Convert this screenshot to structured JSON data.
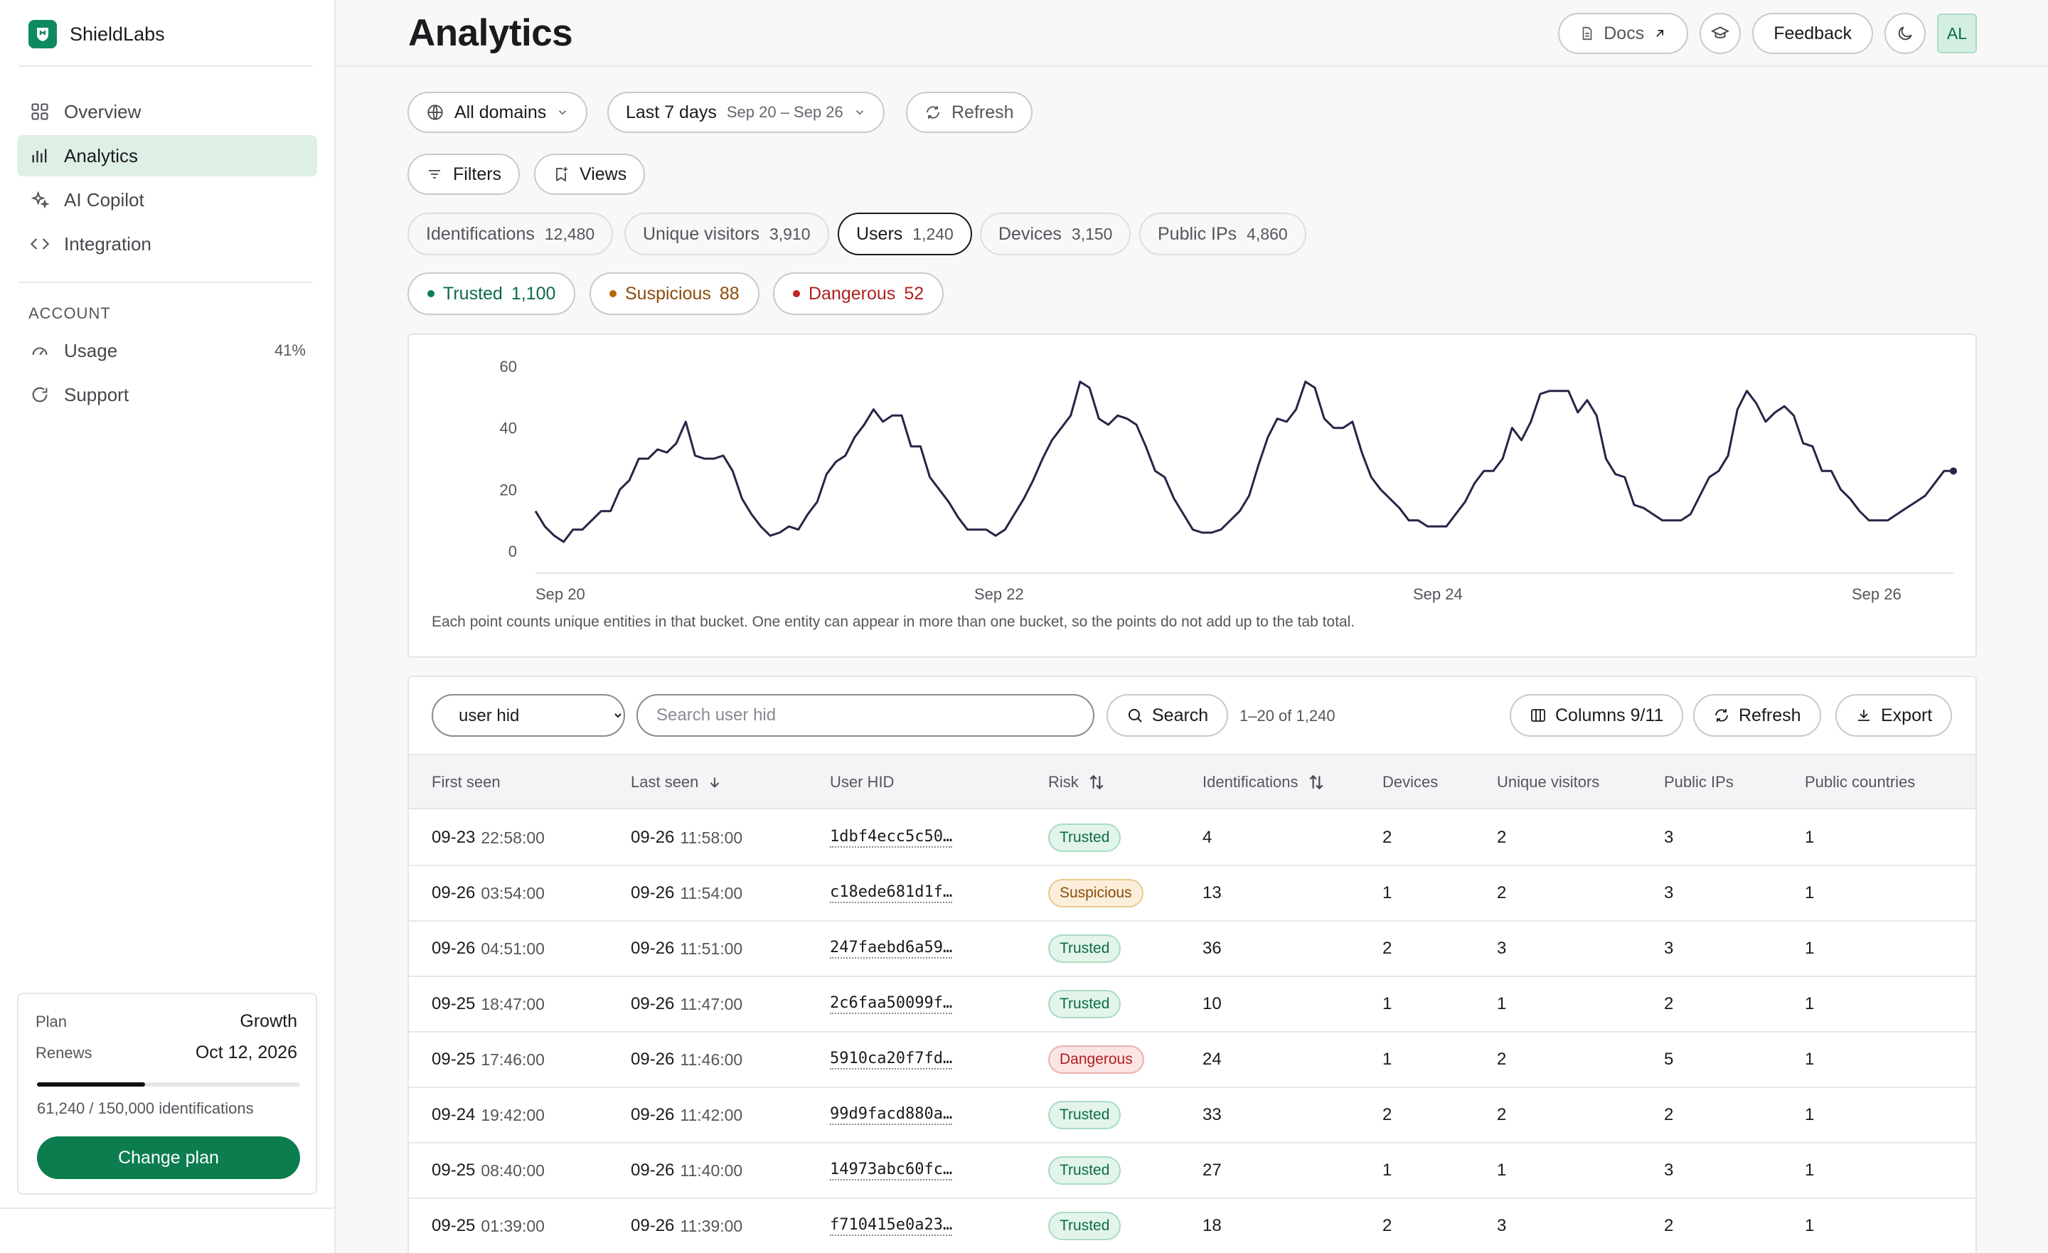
{
  "app": {
    "name": "ShieldLabs"
  },
  "nav": {
    "items": [
      {
        "label": "Overview",
        "icon": "grid-icon"
      },
      {
        "label": "Analytics",
        "icon": "bar-chart-icon",
        "active": true
      },
      {
        "label": "AI Copilot",
        "icon": "sparkle-icon"
      },
      {
        "label": "Integration",
        "icon": "code-icon"
      }
    ],
    "account_heading": "ACCOUNT",
    "account_items": [
      {
        "label": "Usage",
        "icon": "gauge-icon",
        "value": "41%"
      },
      {
        "label": "Support",
        "icon": "chat-icon"
      }
    ]
  },
  "plan": {
    "plan_label": "Plan",
    "plan_value": "Growth",
    "renews_label": "Renews",
    "renews_value": "Oct 12, 2026",
    "usage_text": "61,240 / 150,000 identifications",
    "usage_fraction": 0.41,
    "button": "Change plan"
  },
  "header": {
    "title": "Analytics",
    "docs": "Docs",
    "feedback": "Feedback",
    "avatar": "AL"
  },
  "controls": {
    "domains": "All domains",
    "range_label": "Last 7 days",
    "range_dates": "Sep 20 – Sep 26",
    "refresh": "Refresh",
    "filters": "Filters",
    "views": "Views"
  },
  "tabs": [
    {
      "label": "Identifications",
      "count": "12,480"
    },
    {
      "label": "Unique visitors",
      "count": "3,910"
    },
    {
      "label": "Users",
      "count": "1,240",
      "active": true
    },
    {
      "label": "Devices",
      "count": "3,150"
    },
    {
      "label": "Public IPs",
      "count": "4,860"
    }
  ],
  "risk_filters": [
    {
      "label": "Trusted",
      "count": "1,100",
      "color": "#0b7d4f"
    },
    {
      "label": "Suspicious",
      "count": "88",
      "color": "#b8660e"
    },
    {
      "label": "Dangerous",
      "count": "52",
      "color": "#c42323"
    }
  ],
  "chart_data": {
    "type": "line",
    "y_ticks": [
      "0",
      "20",
      "40",
      "60"
    ],
    "x_ticks": [
      "Sep 20",
      "Sep 22",
      "Sep 24",
      "Sep 26"
    ],
    "ylim": [
      0,
      60
    ],
    "line_color": "#2b2346",
    "series": [
      {
        "values": [
          13,
          8,
          5,
          3,
          7,
          7,
          10,
          13,
          13,
          20,
          23,
          30,
          30,
          33,
          32,
          35,
          42,
          31,
          30,
          30,
          31,
          26,
          17,
          12,
          8,
          5,
          6,
          8,
          7,
          12,
          16,
          25,
          29,
          31,
          37,
          41,
          46,
          42,
          44,
          44,
          34,
          34,
          24,
          20,
          16,
          11,
          7,
          7,
          7,
          5,
          7,
          12,
          17,
          23,
          30,
          36,
          40,
          44,
          55,
          53,
          43,
          41,
          44,
          43,
          41,
          34,
          26,
          24,
          17,
          12,
          7,
          6,
          6,
          7,
          10,
          13,
          18,
          28,
          37,
          43,
          42,
          46,
          55,
          53,
          43,
          40,
          40,
          42,
          32,
          24,
          20,
          17,
          14,
          10,
          10,
          8,
          8,
          8,
          12,
          16,
          22,
          26,
          26,
          30,
          40,
          36,
          42,
          51,
          52,
          52,
          52,
          45,
          49,
          44,
          30,
          25,
          24,
          15,
          14,
          12,
          10,
          10,
          10,
          12,
          18,
          24,
          26,
          31,
          46,
          52,
          48,
          42,
          45,
          47,
          44,
          35,
          34,
          26,
          26,
          20,
          17,
          13,
          10,
          10,
          10,
          12,
          14,
          16,
          18,
          22,
          26,
          26
        ]
      }
    ],
    "note": "Each point counts unique entities in that bucket. One entity can appear in more than one bucket, so the points do not add up to the tab total."
  },
  "table_toolbar": {
    "select_value": "user hid",
    "search_placeholder": "Search user hid",
    "search_button": "Search",
    "range": "1–20 of 1,240",
    "columns": "Columns 9/11",
    "refresh": "Refresh",
    "export": "Export"
  },
  "table": {
    "columns": [
      "First seen",
      "Last seen",
      "User HID",
      "Risk",
      "Identifications",
      "Devices",
      "Unique visitors",
      "Public IPs",
      "Public countries"
    ],
    "rows": [
      {
        "first_date": "09-23",
        "first_time": "22:58:00",
        "last_date": "09-26",
        "last_time": "11:58:00",
        "hid": "1dbf4ecc5c50…",
        "risk": "Trusted",
        "ident": "4",
        "devices": "2",
        "visitors": "2",
        "ips": "3",
        "countries": "1"
      },
      {
        "first_date": "09-26",
        "first_time": "03:54:00",
        "last_date": "09-26",
        "last_time": "11:54:00",
        "hid": "c18ede681d1f…",
        "risk": "Suspicious",
        "ident": "13",
        "devices": "1",
        "visitors": "2",
        "ips": "3",
        "countries": "1"
      },
      {
        "first_date": "09-26",
        "first_time": "04:51:00",
        "last_date": "09-26",
        "last_time": "11:51:00",
        "hid": "247faebd6a59…",
        "risk": "Trusted",
        "ident": "36",
        "devices": "2",
        "visitors": "3",
        "ips": "3",
        "countries": "1"
      },
      {
        "first_date": "09-25",
        "first_time": "18:47:00",
        "last_date": "09-26",
        "last_time": "11:47:00",
        "hid": "2c6faa50099f…",
        "risk": "Trusted",
        "ident": "10",
        "devices": "1",
        "visitors": "1",
        "ips": "2",
        "countries": "1"
      },
      {
        "first_date": "09-25",
        "first_time": "17:46:00",
        "last_date": "09-26",
        "last_time": "11:46:00",
        "hid": "5910ca20f7fd…",
        "risk": "Dangerous",
        "ident": "24",
        "devices": "1",
        "visitors": "2",
        "ips": "5",
        "countries": "1"
      },
      {
        "first_date": "09-24",
        "first_time": "19:42:00",
        "last_date": "09-26",
        "last_time": "11:42:00",
        "hid": "99d9facd880a…",
        "risk": "Trusted",
        "ident": "33",
        "devices": "2",
        "visitors": "2",
        "ips": "2",
        "countries": "1"
      },
      {
        "first_date": "09-25",
        "first_time": "08:40:00",
        "last_date": "09-26",
        "last_time": "11:40:00",
        "hid": "14973abc60fc…",
        "risk": "Trusted",
        "ident": "27",
        "devices": "1",
        "visitors": "1",
        "ips": "3",
        "countries": "1"
      },
      {
        "first_date": "09-25",
        "first_time": "01:39:00",
        "last_date": "09-26",
        "last_time": "11:39:00",
        "hid": "f710415e0a23…",
        "risk": "Trusted",
        "ident": "18",
        "devices": "2",
        "visitors": "3",
        "ips": "2",
        "countries": "1"
      }
    ]
  }
}
